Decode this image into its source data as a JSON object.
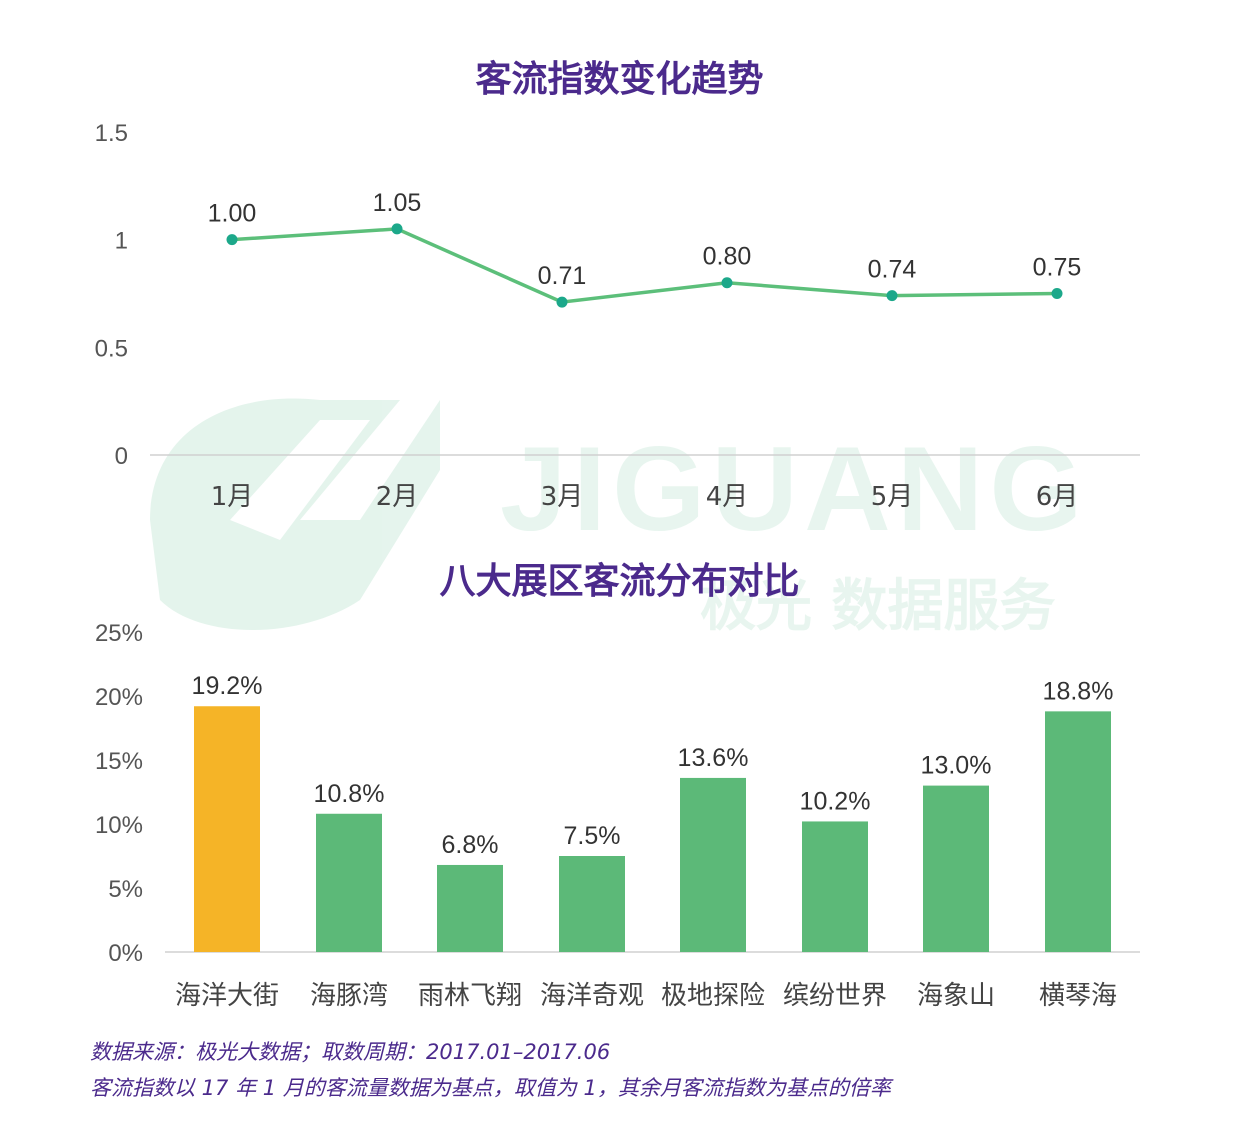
{
  "watermark": {
    "brand": "JIGUANG",
    "tagline": "极光 数据服务"
  },
  "chart_data": [
    {
      "type": "line",
      "title": "客流指数变化趋势",
      "categories": [
        "1月",
        "2月",
        "3月",
        "4月",
        "5月",
        "6月"
      ],
      "values": [
        1.0,
        1.05,
        0.71,
        0.8,
        0.74,
        0.75
      ],
      "value_labels": [
        "1.00",
        "1.05",
        "0.71",
        "0.80",
        "0.74",
        "0.75"
      ],
      "ylim": [
        0,
        1.5
      ],
      "yticks": [
        "0",
        "0.5",
        "1",
        "1.5"
      ],
      "grid": false,
      "color": "#5cbf7a",
      "marker_color": "#1ca88a"
    },
    {
      "type": "bar",
      "title": "八大展区客流分布对比",
      "categories": [
        "海洋大街",
        "海豚湾",
        "雨林飞翔",
        "海洋奇观",
        "极地探险",
        "缤纷世界",
        "海象山",
        "横琴海"
      ],
      "values": [
        19.2,
        10.8,
        6.8,
        7.5,
        13.6,
        10.2,
        13.0,
        18.8
      ],
      "value_labels": [
        "19.2%",
        "10.8%",
        "6.8%",
        "7.5%",
        "13.6%",
        "10.2%",
        "13.0%",
        "18.8%"
      ],
      "ylim": [
        0,
        25
      ],
      "yticks": [
        "0%",
        "5%",
        "10%",
        "15%",
        "20%",
        "25%"
      ],
      "grid": false,
      "colors": [
        "#f5b427",
        "#5cb978",
        "#5cb978",
        "#5cb978",
        "#5cb978",
        "#5cb978",
        "#5cb978",
        "#5cb978"
      ]
    }
  ],
  "footnotes": [
    "数据来源：极光大数据；取数周期：2017.01–2017.06",
    "客流指数以 17 年 1 月的客流量数据为基点，取值为 1，其余月客流指数为基点的倍率"
  ]
}
